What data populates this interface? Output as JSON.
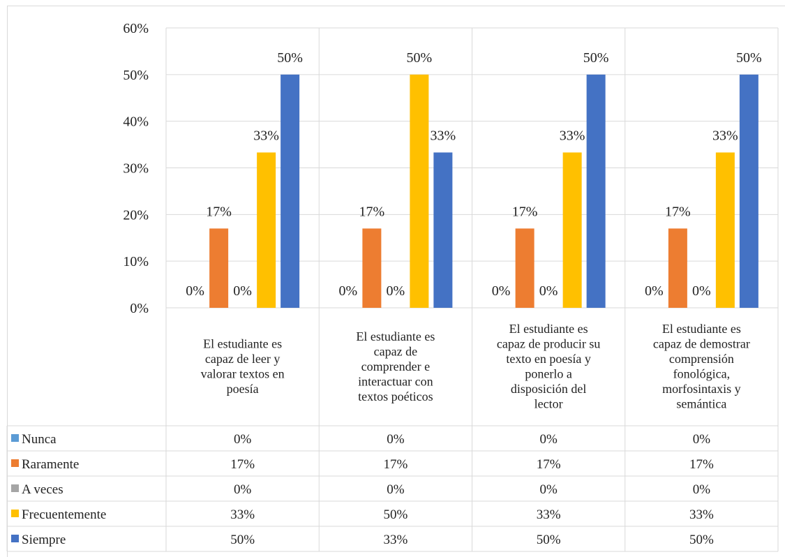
{
  "chart_data": {
    "type": "bar",
    "title": "",
    "xlabel": "",
    "ylabel": "",
    "ylim": [
      0,
      0.6
    ],
    "y_ticks": [
      "0%",
      "10%",
      "20%",
      "30%",
      "40%",
      "50%",
      "60%"
    ],
    "grid": true,
    "legend": "data-table",
    "categories": [
      "El estudiante es capaz de leer y valorar textos en poesía",
      "El estudiante es capaz de comprender e interactuar con textos poéticos",
      "El estudiante es capaz de producir su texto en poesía y ponerlo a disposición del lector",
      "El estudiante es capaz de demostrar comprensión fonológica, morfosintaxis y semántica"
    ],
    "category_lines": [
      [
        "El estudiante es",
        "capaz de leer y",
        "valorar textos en",
        "poesía"
      ],
      [
        "El estudiante es",
        "capaz de",
        "comprender e",
        "interactuar con",
        "textos poéticos"
      ],
      [
        "El estudiante es",
        "capaz de producir su",
        "texto en poesía y",
        "ponerlo a",
        "disposición del",
        "lector"
      ],
      [
        "El estudiante es",
        "capaz de demostrar",
        "comprensión",
        "fonológica,",
        "morfosintaxis y",
        "semántica"
      ]
    ],
    "series": [
      {
        "name": "Nunca",
        "color": "#5B9BD5",
        "values": [
          0,
          0,
          0,
          0
        ],
        "labels": [
          "0%",
          "0%",
          "0%",
          "0%"
        ]
      },
      {
        "name": "Raramente",
        "color": "#ED7D31",
        "values": [
          0.17,
          0.17,
          0.17,
          0.17
        ],
        "labels": [
          "17%",
          "17%",
          "17%",
          "17%"
        ]
      },
      {
        "name": "A veces",
        "color": "#A5A5A5",
        "values": [
          0,
          0,
          0,
          0
        ],
        "labels": [
          "0%",
          "0%",
          "0%",
          "0%"
        ]
      },
      {
        "name": "Frecuentemente",
        "color": "#FFC000",
        "values": [
          0.333,
          0.5,
          0.333,
          0.333
        ],
        "labels": [
          "33%",
          "50%",
          "33%",
          "33%"
        ]
      },
      {
        "name": "Siempre",
        "color": "#4472C4",
        "values": [
          0.5,
          0.333,
          0.5,
          0.5
        ],
        "labels": [
          "50%",
          "33%",
          "50%",
          "50%"
        ]
      }
    ]
  }
}
